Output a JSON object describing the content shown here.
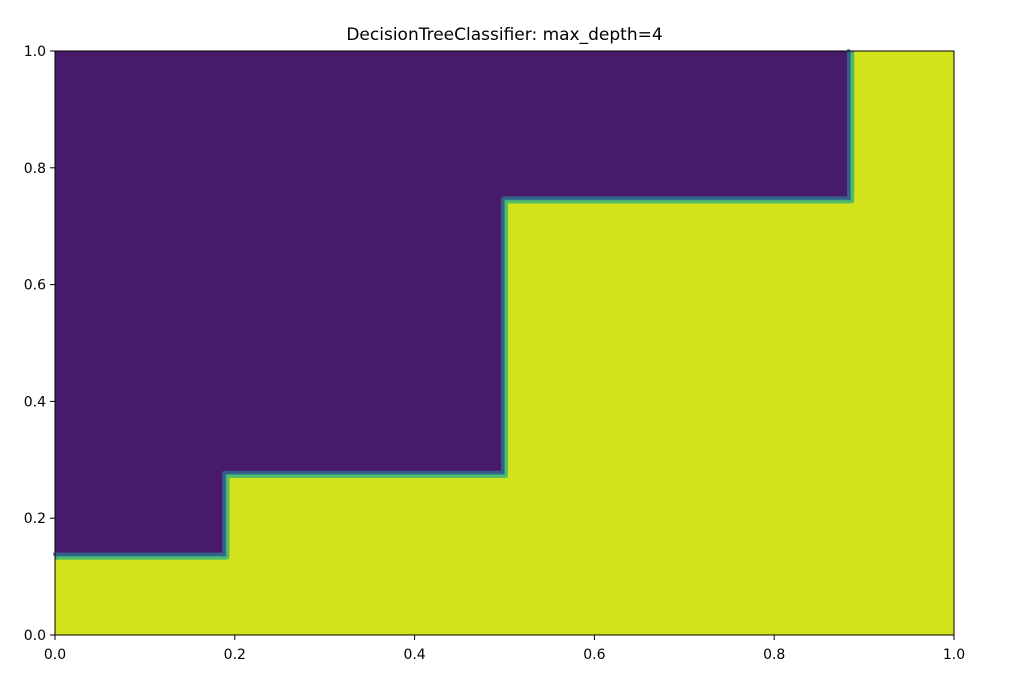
{
  "chart_data": {
    "type": "heatmap",
    "title": "DecisionTreeClassifier: max_depth=4",
    "xlabel": "",
    "ylabel": "",
    "xlim": [
      0.0,
      1.0
    ],
    "ylim": [
      0.0,
      1.0
    ],
    "grid": false,
    "x_ticks": [
      "0.0",
      "0.2",
      "0.4",
      "0.6",
      "0.8",
      "1.0"
    ],
    "y_ticks": [
      "0.0",
      "0.2",
      "0.4",
      "0.6",
      "0.8",
      "1.0"
    ],
    "classes": [
      {
        "color": "#481a6c"
      },
      {
        "color": "#d2e21b"
      }
    ],
    "decision_boundary": [
      [
        0.0,
        0.135
      ],
      [
        0.19,
        0.135
      ],
      [
        0.19,
        0.275
      ],
      [
        0.5,
        0.275
      ],
      [
        0.5,
        0.745
      ],
      [
        0.885,
        0.745
      ],
      [
        0.885,
        1.0
      ]
    ],
    "regions": [
      {
        "class": 0,
        "location": "upper-left"
      },
      {
        "class": 1,
        "location": "lower-right"
      }
    ]
  }
}
